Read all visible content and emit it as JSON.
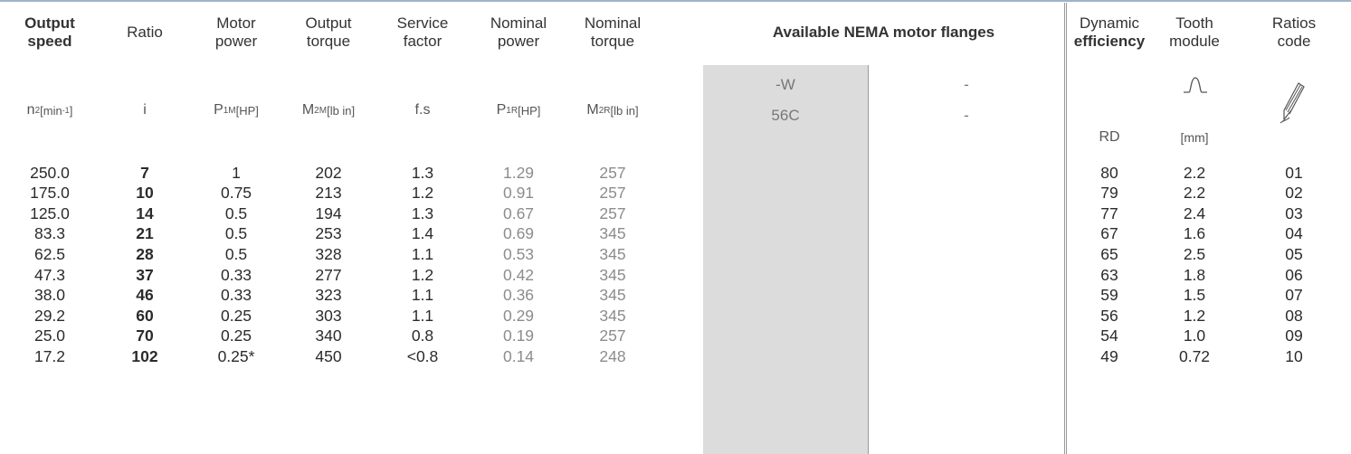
{
  "headers": [
    {
      "line1": "Output",
      "line2": "speed",
      "unit_main": "n",
      "unit_sub": "2",
      "unit_rest": " [min",
      "unit_sup": "-1",
      "unit_tail": "]"
    },
    {
      "line1": "Ratio",
      "line2": "",
      "unit_main": "i",
      "unit_sub": "",
      "unit_rest": "",
      "unit_sup": "",
      "unit_tail": ""
    },
    {
      "line1": "Motor",
      "line2": "power",
      "unit_main": "P",
      "unit_sub": "1M",
      "unit_rest": " [HP]",
      "unit_sup": "",
      "unit_tail": ""
    },
    {
      "line1": "Output",
      "line2": "torque",
      "unit_main": "M",
      "unit_sub": "2M",
      "unit_rest": " [lb in]",
      "unit_sup": "",
      "unit_tail": ""
    },
    {
      "line1": "Service",
      "line2": "factor",
      "unit_main": "f.s",
      "unit_sub": "",
      "unit_rest": "",
      "unit_sup": "",
      "unit_tail": ""
    },
    {
      "line1": "Nominal",
      "line2": "power",
      "unit_main": "P",
      "unit_sub": "1R",
      "unit_rest": " [HP]",
      "unit_sup": "",
      "unit_tail": ""
    },
    {
      "line1": "Nominal",
      "line2": "torque",
      "unit_main": "M",
      "unit_sub": "2R",
      "unit_rest": " [lb in]",
      "unit_sup": "",
      "unit_tail": ""
    }
  ],
  "nema": {
    "title": "Available NEMA motor flanges",
    "flange1_code": "-W",
    "flange1_size": "56C",
    "flange2_code": "-",
    "flange2_size": "-"
  },
  "right_headers": [
    {
      "line1": "Dynamic",
      "line2": "efficiency",
      "unit": "RD"
    },
    {
      "line1": "Tooth",
      "line2": "module",
      "unit": "[mm]"
    },
    {
      "line1": "Ratios",
      "line2": "code",
      "unit": ""
    }
  ],
  "rows": [
    {
      "speed": "250.0",
      "ratio": "7",
      "motor_power": "1",
      "output_torque": "202",
      "service_factor": "1.3",
      "nominal_power": "1.29",
      "nominal_torque": "257",
      "efficiency": "80",
      "module": "2.2",
      "code": "01"
    },
    {
      "speed": "175.0",
      "ratio": "10",
      "motor_power": "0.75",
      "output_torque": "213",
      "service_factor": "1.2",
      "nominal_power": "0.91",
      "nominal_torque": "257",
      "efficiency": "79",
      "module": "2.2",
      "code": "02"
    },
    {
      "speed": "125.0",
      "ratio": "14",
      "motor_power": "0.5",
      "output_torque": "194",
      "service_factor": "1.3",
      "nominal_power": "0.67",
      "nominal_torque": "257",
      "efficiency": "77",
      "module": "2.4",
      "code": "03"
    },
    {
      "speed": "83.3",
      "ratio": "21",
      "motor_power": "0.5",
      "output_torque": "253",
      "service_factor": "1.4",
      "nominal_power": "0.69",
      "nominal_torque": "345",
      "efficiency": "67",
      "module": "1.6",
      "code": "04"
    },
    {
      "speed": "62.5",
      "ratio": "28",
      "motor_power": "0.5",
      "output_torque": "328",
      "service_factor": "1.1",
      "nominal_power": "0.53",
      "nominal_torque": "345",
      "efficiency": "65",
      "module": "2.5",
      "code": "05"
    },
    {
      "speed": "47.3",
      "ratio": "37",
      "motor_power": "0.33",
      "output_torque": "277",
      "service_factor": "1.2",
      "nominal_power": "0.42",
      "nominal_torque": "345",
      "efficiency": "63",
      "module": "1.8",
      "code": "06"
    },
    {
      "speed": "38.0",
      "ratio": "46",
      "motor_power": "0.33",
      "output_torque": "323",
      "service_factor": "1.1",
      "nominal_power": "0.36",
      "nominal_torque": "345",
      "efficiency": "59",
      "module": "1.5",
      "code": "07"
    },
    {
      "speed": "29.2",
      "ratio": "60",
      "motor_power": "0.25",
      "output_torque": "303",
      "service_factor": "1.1",
      "nominal_power": "0.29",
      "nominal_torque": "345",
      "efficiency": "56",
      "module": "1.2",
      "code": "08"
    },
    {
      "speed": "25.0",
      "ratio": "70",
      "motor_power": "0.25",
      "output_torque": "340",
      "service_factor": "0.8",
      "nominal_power": "0.19",
      "nominal_torque": "257",
      "efficiency": "54",
      "module": "1.0",
      "code": "09"
    },
    {
      "speed": "17.2",
      "ratio": "102",
      "motor_power": "0.25*",
      "output_torque": "450",
      "service_factor": "<0.8",
      "nominal_power": "0.14",
      "nominal_torque": "248",
      "efficiency": "49",
      "module": "0.72",
      "code": "10"
    }
  ]
}
